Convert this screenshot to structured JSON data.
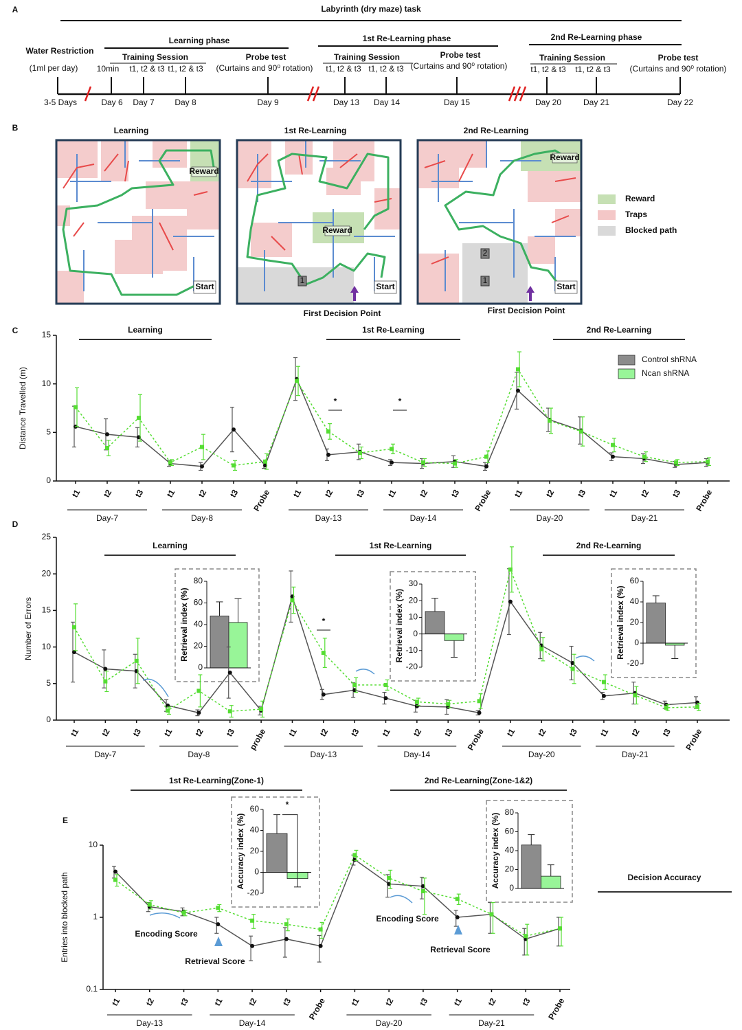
{
  "panel_a": {
    "label": "A",
    "title": "Labyrinth (dry maze) task",
    "phases": [
      "Learning phase",
      "1st Re-Learning phase",
      "2nd Re-Learning phase"
    ],
    "water": [
      "Water Restriction",
      "(1ml per day)"
    ],
    "sessions": [
      "Training Session",
      "Training Session",
      "Training Session"
    ],
    "sub_labels": [
      "10min",
      "t1, t2 & t3",
      "t1, t2 & t3",
      "t1, t2 & t3",
      "t1, t2 & t3",
      "t1, t2 & t3",
      "t1, t2 & t3"
    ],
    "probes": [
      "Probe test",
      "Probe test",
      "Probe test"
    ],
    "probe_notes": [
      "(Curtains and 90⁰ rotation)",
      "(Curtains and 90⁰ rotation)",
      "(Curtains and 90⁰ rotation)"
    ],
    "days": [
      "3-5 Days",
      "Day 6",
      "Day 7",
      "Day 8",
      "Day 9",
      "Day 13",
      "Day 14",
      "Day 15",
      "Day 20",
      "Day 21",
      "Day 22"
    ]
  },
  "panel_b": {
    "label": "B",
    "mazes": [
      {
        "title": "Learning",
        "reward": "Reward",
        "start": "Start"
      },
      {
        "title": "1st Re-Learning",
        "reward": "Reward",
        "start": "Start",
        "zones": [
          "1"
        ],
        "decision": "First Decision Point"
      },
      {
        "title": "2nd Re-Learning",
        "reward": "Reward",
        "start": "Start",
        "zones": [
          "2",
          "1"
        ],
        "decision": "First Decision Point"
      }
    ],
    "legend": [
      {
        "name": "Reward",
        "color": "#c6e0b4"
      },
      {
        "name": "Traps",
        "color": "#f4c7c7"
      },
      {
        "name": "Blocked path",
        "color": "#d9d9d9"
      }
    ]
  },
  "chart_data": [
    {
      "type": "line",
      "label": "C",
      "ylabel": "Distance Travelled (m)",
      "categories": [
        "t1",
        "t2",
        "t3",
        "t1",
        "t2",
        "t3",
        "Probe",
        "t1",
        "t2",
        "t3",
        "t1",
        "t2",
        "t3",
        "Probe",
        "t1",
        "t2",
        "t3",
        "t1",
        "t2",
        "t3",
        "Probe"
      ],
      "day_groups": [
        "Day-7",
        "Day-8",
        "Day-13",
        "Day-14",
        "Day-20",
        "Day-21"
      ],
      "phases": [
        "Learning",
        "1st Re-Learning",
        "2nd Re-Learning"
      ],
      "ylim": [
        0,
        15
      ],
      "yticks": [
        0,
        5,
        10,
        15
      ],
      "legend": "upper right",
      "series": [
        {
          "name": "Control shRNA",
          "color": "#555555",
          "line_style": "solid",
          "values": [
            5.6,
            4.8,
            4.5,
            1.8,
            1.5,
            5.3,
            1.6,
            10.5,
            2.7,
            3.0,
            1.9,
            1.8,
            2.0,
            1.5,
            9.3,
            6.3,
            5.2,
            2.5,
            2.3,
            1.7,
            1.9
          ],
          "errors": [
            2.1,
            1.6,
            1.0,
            0.3,
            0.4,
            2.3,
            0.3,
            2.2,
            0.6,
            0.8,
            0.3,
            0.5,
            0.6,
            0.4,
            1.9,
            1.2,
            1.4,
            0.4,
            0.5,
            0.3,
            0.4
          ]
        },
        {
          "name": "Ncan shRNA",
          "color": "#55dd33",
          "line_style": "dotted",
          "values": [
            7.6,
            3.4,
            6.5,
            1.9,
            3.5,
            1.6,
            2.0,
            10.3,
            5.1,
            2.9,
            3.3,
            1.9,
            1.8,
            2.5,
            11.5,
            6.2,
            5.1,
            3.7,
            2.5,
            1.9,
            2.0
          ],
          "errors": [
            2.0,
            0.8,
            2.4,
            0.3,
            1.3,
            0.5,
            0.8,
            1.5,
            0.8,
            0.6,
            0.5,
            0.4,
            0.4,
            0.6,
            1.8,
            1.3,
            1.5,
            0.7,
            0.5,
            0.3,
            0.4
          ]
        }
      ],
      "annotations": [
        "*",
        "*"
      ]
    },
    {
      "type": "line",
      "label": "D",
      "ylabel": "Number of Errors",
      "categories": [
        "t1",
        "t2",
        "t3",
        "t1",
        "t2",
        "t3",
        "probe",
        "t1",
        "t2",
        "t3",
        "t1",
        "t2",
        "t3",
        "Probe",
        "t1",
        "t2",
        "t3",
        "t1",
        "t2",
        "t3",
        "Probe"
      ],
      "day_groups": [
        "Day-7",
        "Day-8",
        "Day-13",
        "Day-14",
        "Day-20",
        "Day-21"
      ],
      "phases": [
        "Learning",
        "1st Re-Learning",
        "2nd Re-Learning"
      ],
      "ylim": [
        0,
        25
      ],
      "yticks": [
        0,
        5,
        10,
        15,
        20,
        25
      ],
      "series": [
        {
          "color": "#555555",
          "line_style": "solid",
          "values": [
            9.3,
            7.0,
            6.7,
            2.0,
            1.0,
            6.5,
            1.3,
            16.9,
            3.5,
            4.1,
            3.0,
            1.9,
            1.8,
            1.0,
            16.2,
            10.2,
            7.8,
            3.3,
            3.7,
            2.1,
            2.4
          ],
          "errors": [
            4.1,
            2.6,
            2.3,
            0.8,
            0.4,
            3.5,
            0.6,
            3.5,
            0.7,
            1.0,
            0.8,
            0.8,
            1.0,
            0.3,
            4.5,
            1.8,
            2.3,
            0.5,
            1.5,
            0.5,
            0.8
          ]
        },
        {
          "color": "#55dd33",
          "line_style": "dotted",
          "values": [
            12.7,
            5.3,
            8.1,
            1.3,
            4.0,
            1.2,
            1.5,
            16.4,
            9.2,
            4.8,
            4.8,
            2.5,
            2.2,
            2.6,
            20.6,
            9.7,
            7.0,
            5.2,
            3.4,
            1.7,
            1.8
          ],
          "errors": [
            3.2,
            1.4,
            3.1,
            0.5,
            2.2,
            0.8,
            1.1,
            1.8,
            2.0,
            1.0,
            0.7,
            0.5,
            0.5,
            1.0,
            3.1,
            1.6,
            2.0,
            1.0,
            1.2,
            0.4,
            0.5
          ]
        }
      ],
      "annotations": [
        "*"
      ],
      "insets": [
        {
          "type": "bar",
          "ylabel": "Retrieval index (%)",
          "ylim": [
            0,
            80
          ],
          "yticks": [
            0,
            20,
            40,
            60,
            80
          ],
          "values": [
            48,
            42
          ],
          "errors": [
            13,
            22
          ],
          "colors": [
            "#8c8c8c",
            "#98f598"
          ]
        },
        {
          "type": "bar",
          "ylabel": "Retrieval index (%)",
          "ylim": [
            -20,
            30
          ],
          "yticks": [
            -20,
            -10,
            0,
            10,
            20,
            30
          ],
          "values": [
            13.5,
            -4
          ],
          "errors": [
            8,
            10
          ],
          "colors": [
            "#8c8c8c",
            "#98f598"
          ]
        },
        {
          "type": "bar",
          "ylabel": "Retrieval index (%)",
          "ylim": [
            -20,
            60
          ],
          "yticks": [
            -20,
            0,
            20,
            40,
            60
          ],
          "values": [
            39,
            -2
          ],
          "errors": [
            7,
            13
          ],
          "colors": [
            "#8c8c8c",
            "#98f598"
          ]
        }
      ]
    },
    {
      "type": "line",
      "label": "E",
      "ylabel": "Entries into blocked path",
      "log_scale": true,
      "categories": [
        "t1",
        "t2",
        "t3",
        "t1",
        "t2",
        "t3",
        "Probe",
        "t1",
        "t2",
        "t3",
        "t1",
        "t2",
        "t3",
        "Probe"
      ],
      "day_groups": [
        "Day-13",
        "Day-14",
        "Day-20",
        "Day-21"
      ],
      "phases": [
        "1st Re-Learning(Zone-1)",
        "2nd Re-Learning(Zone-1&2)"
      ],
      "ylim": [
        0.1,
        10
      ],
      "yticks": [
        0.1,
        1,
        10
      ],
      "series": [
        {
          "color": "#555555",
          "line_style": "solid",
          "values": [
            4.3,
            1.4,
            1.2,
            0.8,
            0.4,
            0.5,
            0.4,
            6.3,
            2.9,
            2.7,
            1.0,
            1.1,
            0.5,
            0.7
          ],
          "errors": [
            0.8,
            0.2,
            0.15,
            0.2,
            0.15,
            0.22,
            0.16,
            1.0,
            1.0,
            0.9,
            0.25,
            0.5,
            0.2,
            0.3
          ]
        },
        {
          "color": "#55dd33",
          "line_style": "dotted",
          "values": [
            3.3,
            1.5,
            1.15,
            1.35,
            0.9,
            0.8,
            0.68,
            7.3,
            3.5,
            2.3,
            1.8,
            1.1,
            0.55,
            0.7
          ],
          "errors": [
            0.6,
            0.2,
            0.1,
            0.15,
            0.2,
            0.15,
            0.17,
            1.2,
            1.0,
            1.2,
            0.3,
            0.5,
            0.25,
            0.3
          ]
        }
      ],
      "annotations": [
        "Encoding Score",
        "Retrieval Score",
        "Encoding Score",
        "Retrieval Score"
      ],
      "side_title": "Decision Accuracy",
      "insets": [
        {
          "type": "bar",
          "ylabel": "Accuracy index (%)",
          "ylim": [
            -20,
            60
          ],
          "yticks": [
            -20,
            0,
            20,
            40,
            60
          ],
          "values": [
            37,
            -6
          ],
          "errors": [
            18,
            8
          ],
          "colors": [
            "#8c8c8c",
            "#98f598"
          ],
          "annotation": "*"
        },
        {
          "type": "bar",
          "ylabel": "Accuracy index (%)",
          "ylim": [
            0,
            80
          ],
          "yticks": [
            0,
            20,
            40,
            60,
            80
          ],
          "values": [
            46,
            13
          ],
          "errors": [
            11,
            12
          ],
          "colors": [
            "#8c8c8c",
            "#98f598"
          ]
        }
      ]
    }
  ]
}
